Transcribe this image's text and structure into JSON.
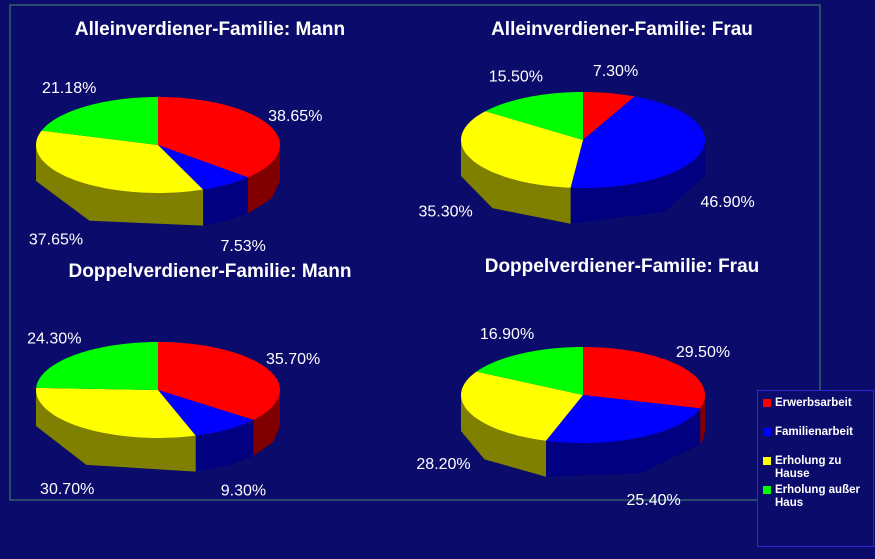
{
  "chart_data": [
    {
      "type": "pie",
      "title": "Alleinverdiener-Familie: Mann",
      "categories": [
        "Erwerbsarbeit",
        "Familienarbeit",
        "Erholung zu Hause",
        "Erholung außer Haus"
      ],
      "values": [
        38.65,
        7.53,
        37.65,
        21.18
      ],
      "value_labels": [
        "38.65%",
        "7.53%",
        "37.65%",
        "21.18%"
      ],
      "colors": [
        "#ff0000",
        "#0000ff",
        "#ffff00",
        "#00ff00"
      ]
    },
    {
      "type": "pie",
      "title": "Alleinverdiener-Familie: Frau",
      "values": [
        7.3,
        46.9,
        35.3,
        15.5
      ],
      "value_labels": [
        "7.30%",
        "46.90%",
        "35.30%",
        "15.50%"
      ],
      "colors": [
        "#ff0000",
        "#0000ff",
        "#ffff00",
        "#00ff00"
      ]
    },
    {
      "type": "pie",
      "title": "Doppelverdiener-Familie: Mann",
      "values": [
        35.7,
        9.3,
        30.7,
        24.3
      ],
      "value_labels": [
        "35.70%",
        "9.30%",
        "30.70%",
        "24.30%"
      ],
      "colors": [
        "#ff0000",
        "#0000ff",
        "#ffff00",
        "#00ff00"
      ]
    },
    {
      "type": "pie",
      "title": "Doppelverdiener-Familie: Frau",
      "values": [
        29.5,
        25.4,
        28.2,
        16.9
      ],
      "value_labels": [
        "29.50%",
        "25.40%",
        "28.20%",
        "16.90%"
      ],
      "colors": [
        "#ff0000",
        "#0000ff",
        "#ffff00",
        "#00ff00"
      ]
    }
  ]
}
